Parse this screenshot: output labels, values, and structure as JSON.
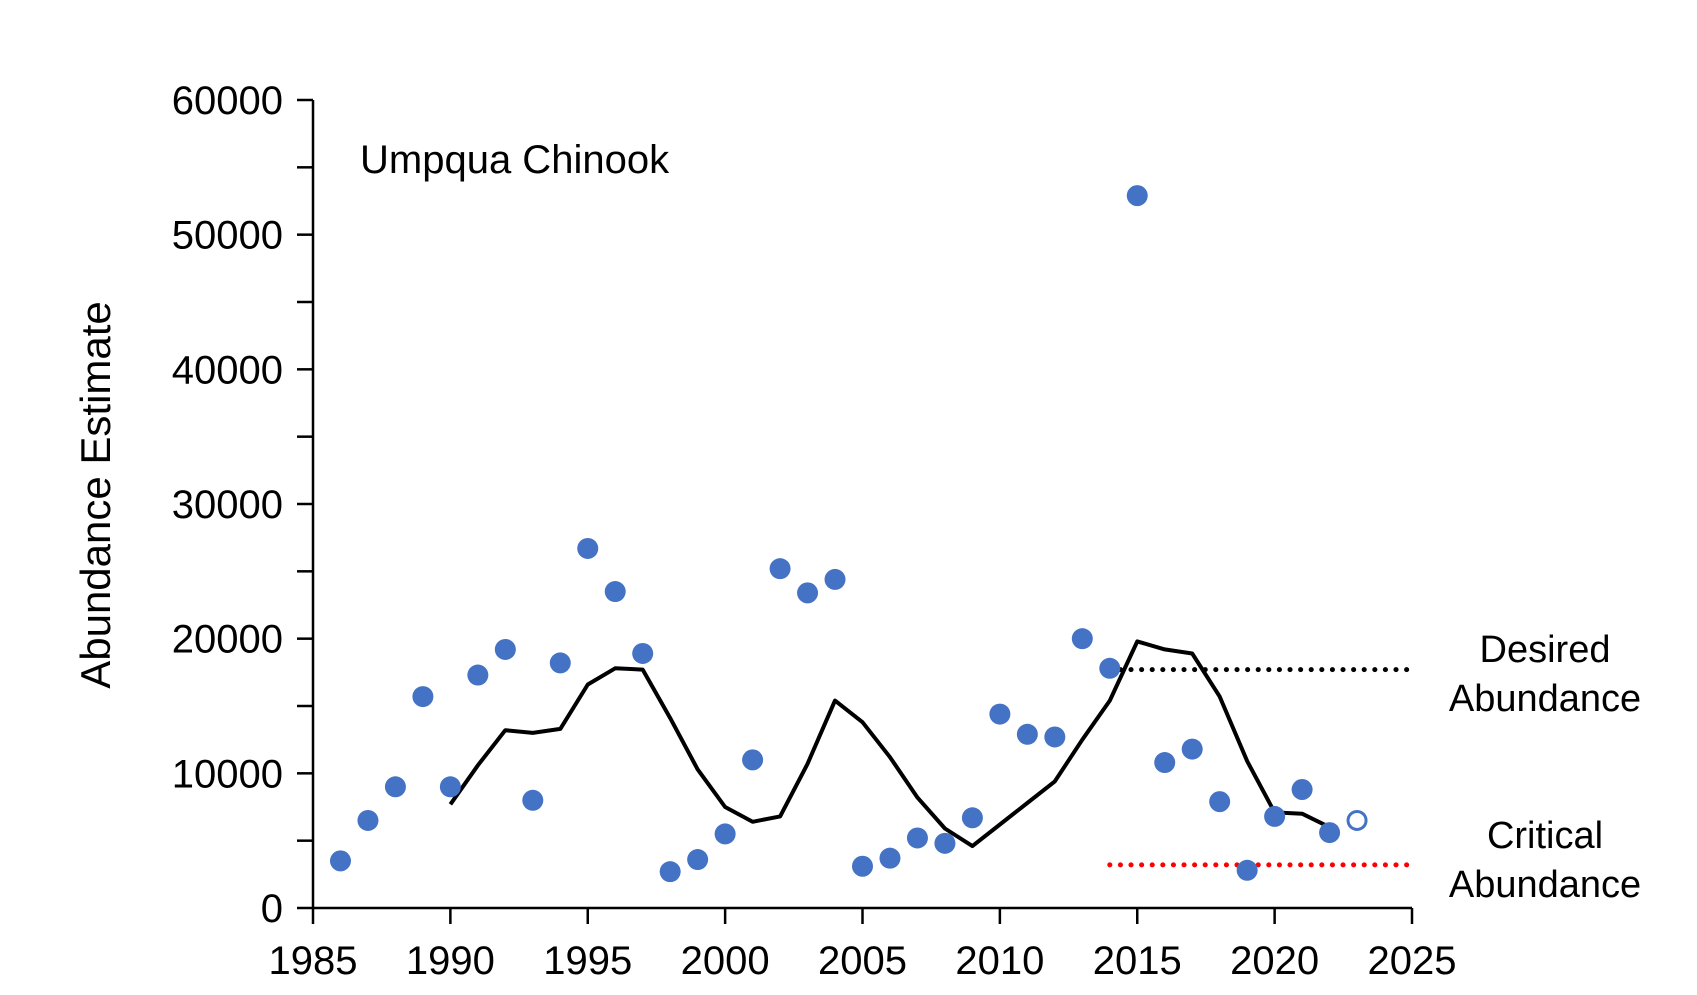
{
  "chart_data": {
    "type": "scatter",
    "title": "Umpqua Chinook",
    "xlabel": "",
    "ylabel": "Abundance Estimate",
    "xlim": [
      1985,
      2025
    ],
    "ylim": [
      0,
      60000
    ],
    "x_ticks": [
      1985,
      1990,
      1995,
      2000,
      2005,
      2010,
      2015,
      2020,
      2025
    ],
    "y_ticks": [
      0,
      10000,
      20000,
      30000,
      40000,
      50000,
      60000
    ],
    "grid": false,
    "colors": {
      "points": "#4472C4",
      "moving_average": "#000000",
      "desired": "#000000",
      "critical": "#FF0000"
    },
    "series": [
      {
        "kind": "scatter-filled",
        "x": [
          1986,
          1987,
          1988,
          1989,
          1990,
          1991,
          1992,
          1993,
          1994,
          1995,
          1996,
          1997,
          1998,
          1999,
          2000,
          2001,
          2002,
          2003,
          2004,
          2005,
          2006,
          2007,
          2008,
          2009,
          2010,
          2011,
          2012,
          2013,
          2014,
          2015,
          2016,
          2017,
          2018,
          2019,
          2020,
          2021,
          2022
        ],
        "y": [
          3500,
          6500,
          9000,
          15700,
          9000,
          17300,
          19200,
          8000,
          18200,
          26700,
          23500,
          18900,
          2700,
          3600,
          5500,
          11000,
          25200,
          23400,
          24400,
          3100,
          3700,
          5200,
          4800,
          6700,
          14400,
          12900,
          12700,
          20000,
          17800,
          52900,
          10800,
          11800,
          7900,
          2800,
          6800,
          8800,
          5600
        ]
      },
      {
        "kind": "scatter-open",
        "x": [
          2023
        ],
        "y": [
          6500
        ]
      },
      {
        "kind": "line",
        "x": [
          1990,
          1991,
          1992,
          1993,
          1994,
          1995,
          1996,
          1997,
          1998,
          1999,
          2000,
          2001,
          2002,
          2003,
          2004,
          2005,
          2006,
          2007,
          2008,
          2009,
          2010,
          2011,
          2012,
          2013,
          2014,
          2015,
          2016,
          2017,
          2018,
          2019,
          2020,
          2021,
          2022
        ],
        "y": [
          7700,
          10600,
          13200,
          13000,
          13300,
          16600,
          17800,
          17700,
          14100,
          10300,
          7500,
          6400,
          6800,
          10700,
          15400,
          13800,
          11200,
          8200,
          5900,
          4600,
          6200,
          7800,
          9400,
          12500,
          15400,
          19800,
          19200,
          18900,
          15700,
          10900,
          7100,
          7000,
          6000
        ]
      }
    ],
    "reference_lines": [
      {
        "kind": "desired",
        "label": [
          "Desired",
          "Abundance"
        ],
        "y": 17700,
        "x": [
          2014,
          2025
        ]
      },
      {
        "kind": "critical",
        "label": [
          "Critical",
          "Abundance"
        ],
        "y": 3200,
        "x": [
          2014,
          2025
        ]
      }
    ]
  }
}
